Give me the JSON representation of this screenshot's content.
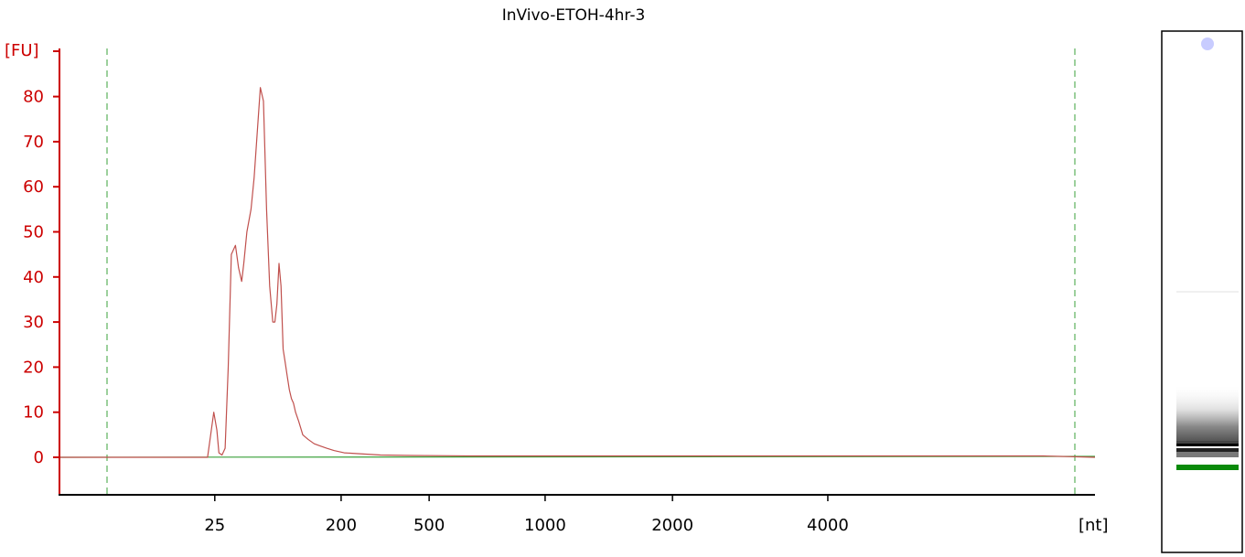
{
  "chart_data": {
    "type": "line",
    "title": "InVivo-ETOH-4hr-3",
    "ylabel": "[FU]",
    "xlabel": "[nt]",
    "ylim": [
      -8,
      90
    ],
    "y_ticks": [
      0,
      10,
      20,
      30,
      40,
      50,
      60,
      70,
      80
    ],
    "y_tick_labels": [
      "0",
      "10",
      "20",
      "30",
      "40",
      "50",
      "60",
      "70",
      "80"
    ],
    "x_ticks": [
      {
        "label": "25",
        "pos": 0.15
      },
      {
        "label": "200",
        "pos": 0.272
      },
      {
        "label": "500",
        "pos": 0.357
      },
      {
        "label": "1000",
        "pos": 0.469
      },
      {
        "label": "2000",
        "pos": 0.592
      },
      {
        "label": "4000",
        "pos": 0.742
      }
    ],
    "x_range": [
      0,
      1
    ],
    "axis_color": "#cc0000",
    "series": [
      {
        "color": "#c0504d",
        "x": [
          0.0,
          0.143,
          0.146,
          0.149,
          0.152,
          0.154,
          0.157,
          0.16,
          0.163,
          0.166,
          0.17,
          0.173,
          0.176,
          0.178,
          0.181,
          0.185,
          0.188,
          0.191,
          0.194,
          0.197,
          0.2,
          0.203,
          0.206,
          0.208,
          0.21,
          0.212,
          0.214,
          0.216,
          0.218,
          0.22,
          0.222,
          0.224,
          0.226,
          0.228,
          0.231,
          0.235,
          0.24,
          0.246,
          0.252,
          0.258,
          0.265,
          0.275,
          0.29,
          0.31,
          0.34,
          0.4,
          0.5,
          0.6,
          0.7,
          0.75,
          0.8,
          0.85,
          0.9,
          0.95,
          1.0
        ],
        "y": [
          0,
          0,
          5,
          10,
          6,
          1,
          0.5,
          2,
          20,
          45,
          47,
          42,
          39,
          43,
          50,
          55,
          62,
          72,
          82,
          79,
          55,
          38,
          30,
          30,
          34,
          43,
          38,
          24,
          21,
          18,
          15,
          13,
          12,
          10,
          8,
          5,
          4,
          3,
          2.5,
          2,
          1.5,
          1,
          0.8,
          0.5,
          0.4,
          0.3,
          0.3,
          0.3,
          0.3,
          0.3,
          0.3,
          0.3,
          0.3,
          0.3,
          0
        ]
      },
      {
        "color": "#3aa03a",
        "x": [
          0,
          1
        ],
        "y": [
          0,
          0.2
        ]
      }
    ],
    "gel": {
      "band_color": "#000000",
      "marker_color": "#0a8a0a",
      "bubble_color": "#c8ccff"
    }
  }
}
